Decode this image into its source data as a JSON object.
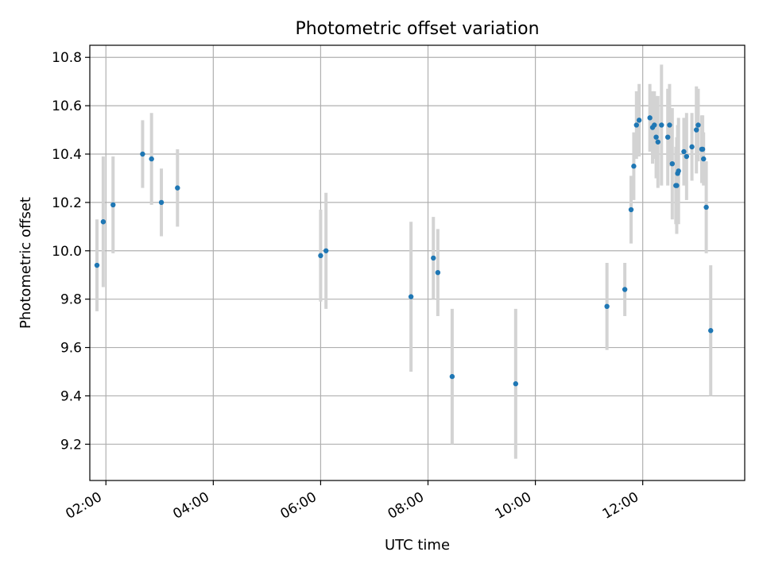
{
  "chart_data": {
    "type": "scatter",
    "title": "Photometric offset variation",
    "xlabel": "UTC time",
    "ylabel": "Photometric offset",
    "xlim": [
      "01:42",
      "13:54"
    ],
    "ylim": [
      9.05,
      10.85
    ],
    "x_ticks": [
      "02:00",
      "04:00",
      "06:00",
      "08:00",
      "10:00",
      "12:00"
    ],
    "y_ticks": [
      9.2,
      9.4,
      9.6,
      9.8,
      10.0,
      10.2,
      10.4,
      10.6,
      10.8
    ],
    "y_tick_labels": [
      "9.2",
      "9.4",
      "9.6",
      "9.8",
      "10.0",
      "10.2",
      "10.4",
      "10.6",
      "10.8"
    ],
    "grid": true,
    "colors": {
      "points": "#1f77b4",
      "errorbars": "#d3d3d3",
      "grid": "#b0b0b0"
    },
    "points": [
      {
        "x": "01:50",
        "y": 9.94,
        "err": 0.19
      },
      {
        "x": "01:57",
        "y": 10.12,
        "err": 0.27
      },
      {
        "x": "02:08",
        "y": 10.19,
        "err": 0.2
      },
      {
        "x": "02:41",
        "y": 10.4,
        "err": 0.14
      },
      {
        "x": "02:51",
        "y": 10.38,
        "err": 0.19
      },
      {
        "x": "03:02",
        "y": 10.2,
        "err": 0.14
      },
      {
        "x": "03:20",
        "y": 10.26,
        "err": 0.16
      },
      {
        "x": "06:00",
        "y": 9.98,
        "err": 0.19
      },
      {
        "x": "06:06",
        "y": 10.0,
        "err": 0.24
      },
      {
        "x": "07:41",
        "y": 9.81,
        "err": 0.31
      },
      {
        "x": "08:06",
        "y": 9.97,
        "err": 0.17
      },
      {
        "x": "08:11",
        "y": 9.91,
        "err": 0.18
      },
      {
        "x": "08:27",
        "y": 9.48,
        "err": 0.28
      },
      {
        "x": "09:38",
        "y": 9.45,
        "err": 0.31
      },
      {
        "x": "11:20",
        "y": 9.77,
        "err": 0.18
      },
      {
        "x": "11:40",
        "y": 9.84,
        "err": 0.11
      },
      {
        "x": "11:47",
        "y": 10.17,
        "err": 0.14
      },
      {
        "x": "11:50",
        "y": 10.35,
        "err": 0.14
      },
      {
        "x": "11:53",
        "y": 10.52,
        "err": 0.14
      },
      {
        "x": "11:56",
        "y": 10.54,
        "err": 0.15
      },
      {
        "x": "12:08",
        "y": 10.55,
        "err": 0.14
      },
      {
        "x": "12:11",
        "y": 10.51,
        "err": 0.15
      },
      {
        "x": "12:13",
        "y": 10.52,
        "err": 0.14
      },
      {
        "x": "12:15",
        "y": 10.47,
        "err": 0.17
      },
      {
        "x": "12:17",
        "y": 10.45,
        "err": 0.19
      },
      {
        "x": "12:21",
        "y": 10.52,
        "err": 0.25
      },
      {
        "x": "12:28",
        "y": 10.47,
        "err": 0.2
      },
      {
        "x": "12:30",
        "y": 10.52,
        "err": 0.17
      },
      {
        "x": "12:33",
        "y": 10.36,
        "err": 0.23
      },
      {
        "x": "12:37",
        "y": 10.27,
        "err": 0.16
      },
      {
        "x": "12:38",
        "y": 10.27,
        "err": 0.2
      },
      {
        "x": "12:39",
        "y": 10.32,
        "err": 0.2
      },
      {
        "x": "12:40",
        "y": 10.33,
        "err": 0.22
      },
      {
        "x": "12:46",
        "y": 10.41,
        "err": 0.14
      },
      {
        "x": "12:49",
        "y": 10.39,
        "err": 0.18
      },
      {
        "x": "12:55",
        "y": 10.43,
        "err": 0.14
      },
      {
        "x": "13:00",
        "y": 10.5,
        "err": 0.18
      },
      {
        "x": "13:02",
        "y": 10.52,
        "err": 0.15
      },
      {
        "x": "13:06",
        "y": 10.42,
        "err": 0.14
      },
      {
        "x": "13:07",
        "y": 10.42,
        "err": 0.14
      },
      {
        "x": "13:08",
        "y": 10.38,
        "err": 0.11
      },
      {
        "x": "13:11",
        "y": 10.18,
        "err": 0.19
      },
      {
        "x": "13:16",
        "y": 9.67,
        "err": 0.27
      }
    ]
  }
}
